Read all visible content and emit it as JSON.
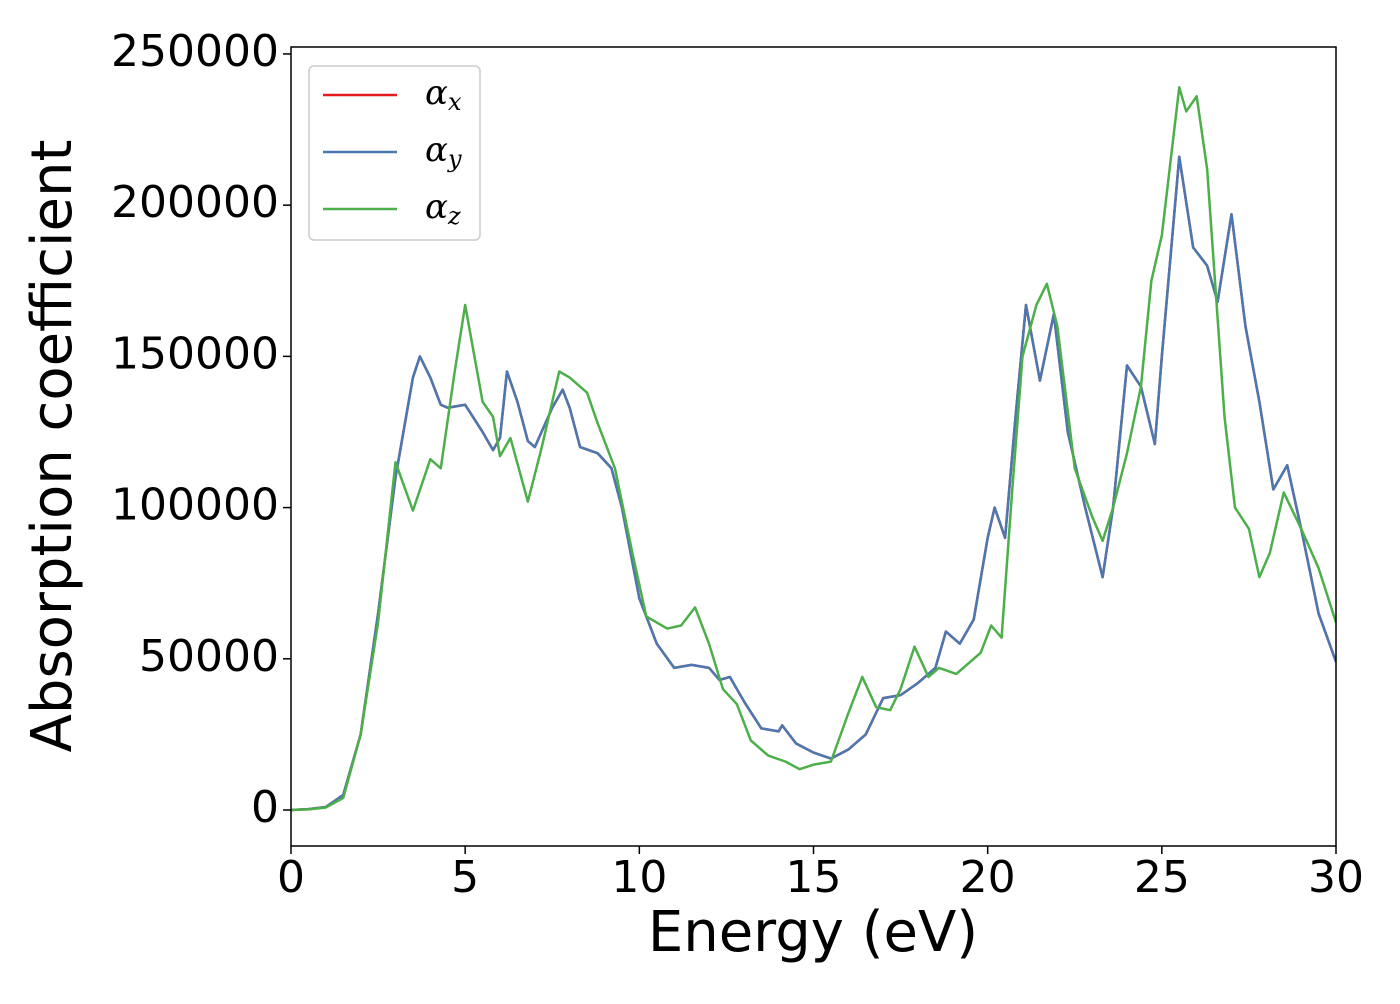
{
  "chart_data": {
    "type": "line",
    "xlabel": "Energy (eV)",
    "ylabel": "Absorption coefficient",
    "xlim": [
      0,
      30
    ],
    "ylim": [
      -11900,
      252300
    ],
    "xticks": [
      0,
      5,
      10,
      15,
      20,
      25,
      30
    ],
    "yticks": [
      0,
      50000,
      100000,
      150000,
      200000,
      250000
    ],
    "legend": "upper left",
    "series": [
      {
        "name": "αx",
        "color": "#e41a1c",
        "x": [
          0,
          0.5,
          1,
          1.5,
          2,
          2.5,
          3,
          3.5,
          3.7,
          4,
          4.3,
          4.5,
          5,
          5.5,
          5.8,
          6,
          6.2,
          6.5,
          6.8,
          7,
          7.5,
          7.8,
          8,
          8.3,
          8.8,
          9.2,
          9.5,
          10,
          10.5,
          11,
          11.5,
          12,
          12.3,
          12.6,
          13,
          13.5,
          14,
          14.1,
          14.5,
          15,
          15.5,
          16,
          16.5,
          17,
          17.5,
          18,
          18.5,
          18.8,
          19.2,
          19.6,
          20,
          20.2,
          20.5,
          20.8,
          21.1,
          21.5,
          21.9,
          22.3,
          22.8,
          23.3,
          23.6,
          24,
          24.4,
          24.8,
          25,
          25.5,
          25.9,
          26.3,
          26.6,
          27,
          27.4,
          27.8,
          28.2,
          28.6,
          29,
          29.5,
          30
        ],
        "values": [
          0,
          300,
          1000,
          5000,
          25000,
          65000,
          110000,
          143000,
          150000,
          143000,
          134000,
          133000,
          134000,
          125000,
          119000,
          123000,
          145000,
          135000,
          122000,
          120000,
          133000,
          139000,
          133000,
          120000,
          118000,
          113000,
          100000,
          70000,
          55000,
          47000,
          48000,
          47000,
          43000,
          44000,
          36000,
          27000,
          26000,
          28000,
          22000,
          19000,
          17000,
          20000,
          25000,
          37000,
          38000,
          42000,
          47000,
          59000,
          55000,
          63000,
          90000,
          100000,
          90000,
          130000,
          167000,
          142000,
          164000,
          125000,
          100000,
          77000,
          100000,
          147000,
          140000,
          121000,
          150000,
          216000,
          186000,
          180000,
          168000,
          197000,
          160000,
          135000,
          106000,
          114000,
          93000,
          65000,
          49000
        ]
      },
      {
        "name": "αy",
        "color": "#4a78b0",
        "x": [
          0,
          0.5,
          1,
          1.5,
          2,
          2.5,
          3,
          3.5,
          3.7,
          4,
          4.3,
          4.5,
          5,
          5.5,
          5.8,
          6,
          6.2,
          6.5,
          6.8,
          7,
          7.5,
          7.8,
          8,
          8.3,
          8.8,
          9.2,
          9.5,
          10,
          10.5,
          11,
          11.5,
          12,
          12.3,
          12.6,
          13,
          13.5,
          14,
          14.1,
          14.5,
          15,
          15.5,
          16,
          16.5,
          17,
          17.5,
          18,
          18.5,
          18.8,
          19.2,
          19.6,
          20,
          20.2,
          20.5,
          20.8,
          21.1,
          21.5,
          21.9,
          22.3,
          22.8,
          23.3,
          23.6,
          24,
          24.4,
          24.8,
          25,
          25.5,
          25.9,
          26.3,
          26.6,
          27,
          27.4,
          27.8,
          28.2,
          28.6,
          29,
          29.5,
          30
        ],
        "values": [
          0,
          300,
          1000,
          5000,
          25000,
          65000,
          110000,
          143000,
          150000,
          143000,
          134000,
          133000,
          134000,
          125000,
          119000,
          123000,
          145000,
          135000,
          122000,
          120000,
          133000,
          139000,
          133000,
          120000,
          118000,
          113000,
          100000,
          70000,
          55000,
          47000,
          48000,
          47000,
          43000,
          44000,
          36000,
          27000,
          26000,
          28000,
          22000,
          19000,
          17000,
          20000,
          25000,
          37000,
          38000,
          42000,
          47000,
          59000,
          55000,
          63000,
          90000,
          100000,
          90000,
          130000,
          167000,
          142000,
          164000,
          125000,
          100000,
          77000,
          100000,
          147000,
          140000,
          121000,
          150000,
          216000,
          186000,
          180000,
          168000,
          197000,
          160000,
          135000,
          106000,
          114000,
          93000,
          65000,
          49000
        ]
      },
      {
        "name": "αz",
        "color": "#4daf4a",
        "x": [
          0,
          0.5,
          1,
          1.5,
          2,
          2.5,
          3,
          3.5,
          4,
          4.3,
          4.7,
          5,
          5.5,
          5.8,
          6,
          6.3,
          6.8,
          7.2,
          7.7,
          8,
          8.5,
          8.8,
          9.3,
          9.8,
          10.2,
          10.8,
          11.2,
          11.6,
          12,
          12.4,
          12.8,
          13.2,
          13.7,
          14.2,
          14.6,
          15,
          15.5,
          16,
          16.4,
          16.8,
          17.2,
          17.5,
          17.9,
          18.3,
          18.6,
          19.1,
          19.5,
          19.8,
          20.1,
          20.4,
          20.7,
          21,
          21.4,
          21.7,
          22,
          22.5,
          23,
          23.3,
          23.6,
          24,
          24.4,
          24.7,
          25,
          25.5,
          25.7,
          26,
          26.3,
          26.8,
          27.1,
          27.5,
          27.8,
          28.1,
          28.5,
          29,
          29.5,
          30
        ],
        "values": [
          0,
          200,
          800,
          4000,
          25000,
          62000,
          115000,
          99000,
          116000,
          113000,
          145000,
          167000,
          135000,
          130000,
          117000,
          123000,
          102000,
          120000,
          145000,
          143000,
          138000,
          128000,
          113000,
          85000,
          64000,
          60000,
          61000,
          67000,
          55000,
          40000,
          35000,
          23000,
          18000,
          16000,
          13500,
          15000,
          16000,
          32000,
          44000,
          34000,
          33000,
          40000,
          54000,
          44000,
          47000,
          45000,
          49000,
          52000,
          61000,
          57000,
          105000,
          150000,
          167000,
          174000,
          160000,
          113000,
          97000,
          89000,
          100000,
          118000,
          140000,
          175000,
          190000,
          239000,
          231000,
          236000,
          212000,
          130000,
          100000,
          93000,
          77000,
          85000,
          105000,
          93000,
          80000,
          62000
        ]
      }
    ]
  }
}
